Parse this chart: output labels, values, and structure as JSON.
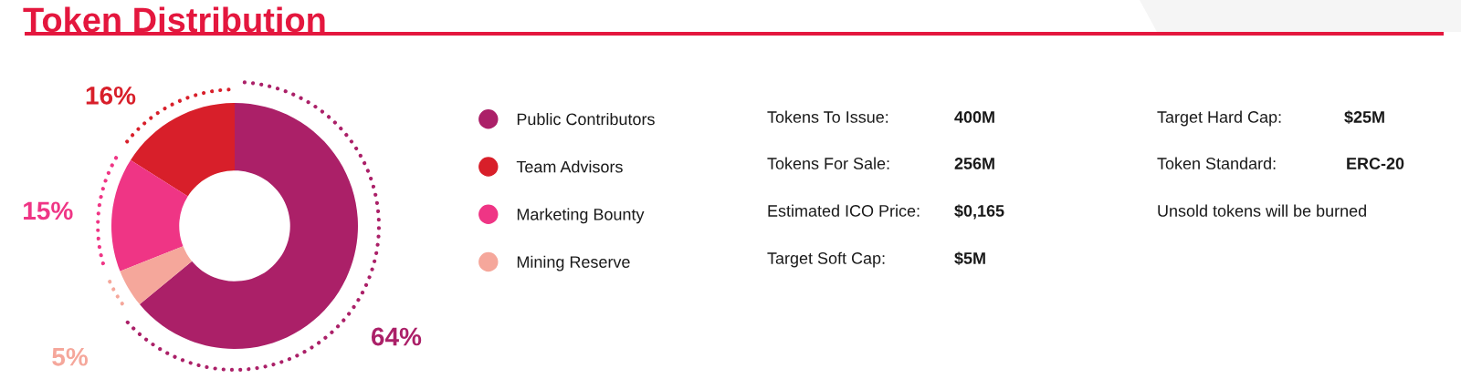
{
  "chart_data": [
    {
      "type": "donut",
      "title": "Token Distribution",
      "categories": [
        "Public Contributors",
        "Team Advisors",
        "Marketing Bounty",
        "Mining Reserve"
      ],
      "values": [
        64,
        16,
        15,
        5
      ],
      "colors": [
        "#ab2068",
        "#d81f2a",
        "#ef3585",
        "#f5a79b"
      ],
      "value_labels": [
        "64%",
        "16%",
        "15%",
        "5%"
      ],
      "legend": "right"
    },
    {
      "type": "other",
      "annotations": [
        "Tokens To Issue:",
        "400M",
        "Tokens For Sale:",
        "256M",
        "Estimated ICO Price:",
        "$0,165",
        "Target Soft Cap:",
        "$5M",
        "Target Hard Cap:",
        "$25M",
        "Token Standard:",
        "ERC-20",
        "Unsold tokens will be burned"
      ]
    }
  ]
}
